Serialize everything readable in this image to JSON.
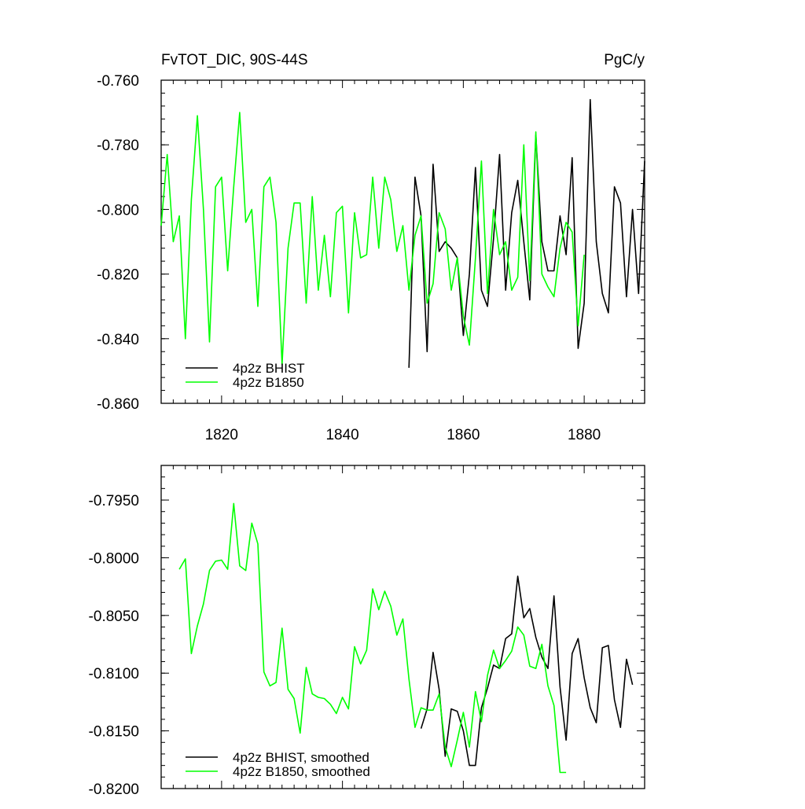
{
  "chart_data": [
    {
      "type": "line",
      "title": "FvTOT_DIC, 90S-44S",
      "units": "PgC/y",
      "xlabel": "",
      "ylabel": "",
      "xlim": [
        1810,
        1890
      ],
      "ylim": [
        -0.86,
        -0.76
      ],
      "xticks": [
        1820,
        1840,
        1860,
        1880
      ],
      "xtick_labels": [
        "1820",
        "1840",
        "1860",
        "1880"
      ],
      "yticks": [
        -0.76,
        -0.78,
        -0.8,
        -0.82,
        -0.84,
        -0.86
      ],
      "ytick_labels": [
        "-0.760",
        "-0.780",
        "-0.800",
        "-0.820",
        "-0.840",
        "-0.860"
      ],
      "grid": false,
      "legend": "bottom-left",
      "series": [
        {
          "name": "4p2z BHIST",
          "color": "#000000",
          "x": [
            1851,
            1852,
            1853,
            1854,
            1855,
            1856,
            1857,
            1858,
            1859,
            1860,
            1861,
            1862,
            1863,
            1864,
            1865,
            1866,
            1867,
            1868,
            1869,
            1870,
            1871,
            1872,
            1873,
            1874,
            1875,
            1876,
            1877,
            1878,
            1879,
            1880,
            1881,
            1882,
            1883,
            1884,
            1885,
            1886,
            1887,
            1888,
            1889,
            1890
          ],
          "y": [
            -0.849,
            -0.79,
            -0.802,
            -0.844,
            -0.786,
            -0.813,
            -0.81,
            -0.812,
            -0.815,
            -0.839,
            -0.82,
            -0.787,
            -0.825,
            -0.83,
            -0.809,
            -0.783,
            -0.825,
            -0.801,
            -0.791,
            -0.81,
            -0.828,
            -0.777,
            -0.81,
            -0.819,
            -0.819,
            -0.802,
            -0.814,
            -0.784,
            -0.843,
            -0.829,
            -0.766,
            -0.81,
            -0.826,
            -0.832,
            -0.793,
            -0.798,
            -0.827,
            -0.8,
            -0.826,
            -0.785
          ]
        },
        {
          "name": "4p2z B1850",
          "color": "#00ff00",
          "x": [
            1810,
            1811,
            1812,
            1813,
            1814,
            1815,
            1816,
            1817,
            1818,
            1819,
            1820,
            1821,
            1822,
            1823,
            1824,
            1825,
            1826,
            1827,
            1828,
            1829,
            1830,
            1831,
            1832,
            1833,
            1834,
            1835,
            1836,
            1837,
            1838,
            1839,
            1840,
            1841,
            1842,
            1843,
            1844,
            1845,
            1846,
            1847,
            1848,
            1849,
            1850,
            1851,
            1852,
            1853,
            1854,
            1855,
            1856,
            1857,
            1858,
            1859,
            1860,
            1861,
            1862,
            1863,
            1864,
            1865,
            1866,
            1867,
            1868,
            1869,
            1870,
            1871,
            1872,
            1873,
            1874,
            1875,
            1876,
            1877,
            1878,
            1879,
            1880
          ],
          "y": [
            -0.805,
            -0.783,
            -0.81,
            -0.802,
            -0.84,
            -0.797,
            -0.771,
            -0.8,
            -0.841,
            -0.793,
            -0.79,
            -0.819,
            -0.793,
            -0.77,
            -0.804,
            -0.8,
            -0.83,
            -0.793,
            -0.79,
            -0.804,
            -0.848,
            -0.812,
            -0.798,
            -0.798,
            -0.829,
            -0.796,
            -0.825,
            -0.808,
            -0.827,
            -0.801,
            -0.799,
            -0.832,
            -0.801,
            -0.815,
            -0.814,
            -0.79,
            -0.812,
            -0.79,
            -0.797,
            -0.813,
            -0.805,
            -0.825,
            -0.808,
            -0.802,
            -0.829,
            -0.823,
            -0.801,
            -0.806,
            -0.825,
            -0.815,
            -0.833,
            -0.842,
            -0.815,
            -0.785,
            -0.826,
            -0.8,
            -0.814,
            -0.81,
            -0.825,
            -0.821,
            -0.78,
            -0.822,
            -0.776,
            -0.82,
            -0.824,
            -0.827,
            -0.812,
            -0.804,
            -0.807,
            -0.836,
            -0.814
          ]
        }
      ]
    },
    {
      "type": "line",
      "title": "",
      "xlabel": "",
      "ylabel": "",
      "xlim": [
        1810,
        1890
      ],
      "ylim": [
        -0.82,
        -0.792
      ],
      "xticks": [
        1820,
        1840,
        1860,
        1880
      ],
      "yticks": [
        -0.795,
        -0.8,
        -0.805,
        -0.81,
        -0.815,
        -0.82
      ],
      "ytick_labels": [
        "-0.7950",
        "-0.8000",
        "-0.8050",
        "-0.8100",
        "-0.8150",
        "-0.8200"
      ],
      "grid": false,
      "legend": "bottom-left",
      "series": [
        {
          "name": "4p2z BHIST, smoothed",
          "color": "#000000",
          "x": [
            1853,
            1854,
            1855,
            1856,
            1857,
            1858,
            1859,
            1860,
            1861,
            1862,
            1863,
            1864,
            1865,
            1866,
            1867,
            1868,
            1869,
            1870,
            1871,
            1872,
            1873,
            1874,
            1875,
            1876,
            1877,
            1878,
            1879,
            1880,
            1881,
            1882,
            1883,
            1884,
            1885,
            1886,
            1887,
            1888
          ],
          "y": [
            -0.8148,
            -0.8131,
            -0.8082,
            -0.8114,
            -0.8172,
            -0.8131,
            -0.8133,
            -0.815,
            -0.818,
            -0.818,
            -0.813,
            -0.8113,
            -0.8093,
            -0.8096,
            -0.807,
            -0.8066,
            -0.8016,
            -0.8052,
            -0.8044,
            -0.8069,
            -0.8086,
            -0.8096,
            -0.8033,
            -0.8112,
            -0.8158,
            -0.8083,
            -0.807,
            -0.8104,
            -0.813,
            -0.8143,
            -0.8078,
            -0.8076,
            -0.8123,
            -0.8147,
            -0.8088,
            -0.811
          ]
        },
        {
          "name": "4p2z B1850, smoothed",
          "color": "#00ff00",
          "x": [
            1813,
            1814,
            1815,
            1816,
            1817,
            1818,
            1819,
            1820,
            1821,
            1822,
            1823,
            1824,
            1825,
            1826,
            1827,
            1828,
            1829,
            1830,
            1831,
            1832,
            1833,
            1834,
            1835,
            1836,
            1837,
            1838,
            1839,
            1840,
            1841,
            1842,
            1843,
            1844,
            1845,
            1846,
            1847,
            1848,
            1849,
            1850,
            1851,
            1852,
            1853,
            1854,
            1855,
            1856,
            1857,
            1858,
            1859,
            1860,
            1861,
            1862,
            1863,
            1864,
            1865,
            1866,
            1867,
            1868,
            1869,
            1870,
            1871,
            1872,
            1873,
            1874,
            1875,
            1876,
            1877
          ],
          "y": [
            -0.801,
            -0.8001,
            -0.8083,
            -0.8059,
            -0.804,
            -0.8011,
            -0.8003,
            -0.8002,
            -0.801,
            -0.7953,
            -0.8007,
            -0.8011,
            -0.797,
            -0.7988,
            -0.8099,
            -0.8111,
            -0.8108,
            -0.8061,
            -0.8114,
            -0.8122,
            -0.8152,
            -0.8095,
            -0.8118,
            -0.8121,
            -0.8122,
            -0.8127,
            -0.8135,
            -0.8121,
            -0.8131,
            -0.8077,
            -0.8092,
            -0.808,
            -0.8027,
            -0.8045,
            -0.8029,
            -0.8042,
            -0.8067,
            -0.8053,
            -0.8105,
            -0.8147,
            -0.813,
            -0.8132,
            -0.8132,
            -0.8118,
            -0.8164,
            -0.8181,
            -0.8158,
            -0.8134,
            -0.8164,
            -0.8116,
            -0.8142,
            -0.8102,
            -0.808,
            -0.8096,
            -0.8089,
            -0.8081,
            -0.806,
            -0.8067,
            -0.8094,
            -0.8096,
            -0.8075,
            -0.8111,
            -0.8128,
            -0.8186,
            -0.8186
          ]
        }
      ]
    }
  ]
}
